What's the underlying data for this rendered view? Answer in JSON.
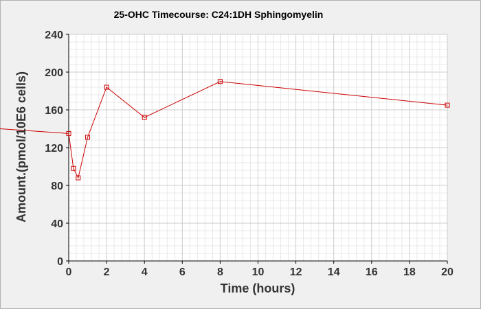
{
  "chart_data": {
    "type": "line",
    "title": "25-OHC Timecourse: C24:1DH Sphingomyelin",
    "xlabel": "Time (hours)",
    "ylabel": "Amount.(pmol/10E6 cells)",
    "xlim": [
      0,
      20
    ],
    "ylim": [
      0,
      240
    ],
    "x_ticks": [
      0,
      2,
      4,
      6,
      8,
      10,
      12,
      14,
      16,
      18,
      20
    ],
    "y_ticks": [
      0,
      40,
      80,
      120,
      160,
      200,
      240
    ],
    "grid": true,
    "legend": "none",
    "series": [
      {
        "color": "#cc0000",
        "x": [
          0,
          0.25,
          0.5,
          1,
          2,
          4,
          8,
          20
        ],
        "y": [
          135,
          98,
          88,
          131,
          184,
          152,
          190,
          165
        ],
        "incoming_from_negative_x": 140
      }
    ]
  }
}
